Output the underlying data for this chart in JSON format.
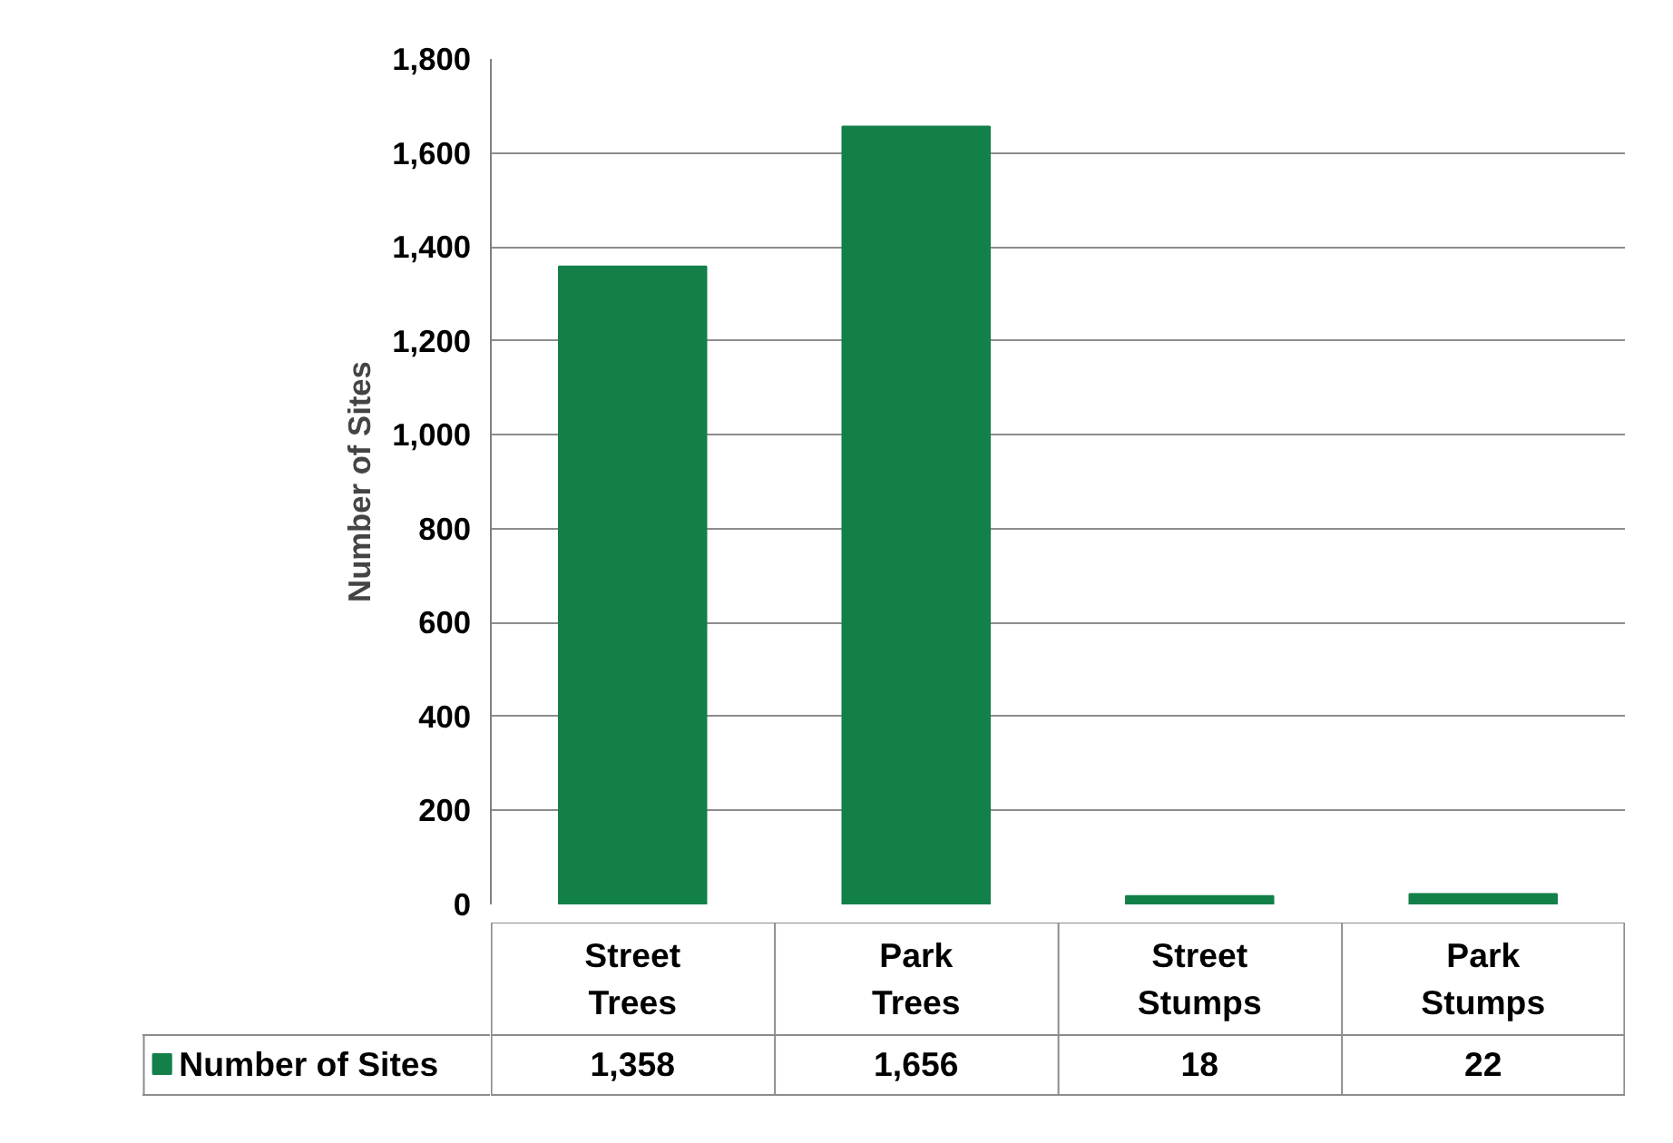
{
  "chart_data": {
    "type": "bar",
    "ylabel": "Number of Sites",
    "categories": [
      "Street Trees",
      "Park Trees",
      "Street Stumps",
      "Park Stumps"
    ],
    "series": [
      {
        "name": "Number of Sites",
        "color": "#138049",
        "values": [
          1358,
          1656,
          18,
          22
        ],
        "value_labels": [
          "1,358",
          "1,656",
          "18",
          "22"
        ]
      }
    ],
    "ylim": [
      0,
      1800
    ],
    "yticks": [
      0,
      200,
      400,
      600,
      800,
      {
        "value": 1000,
        "label": "1,000"
      },
      {
        "value": 1200,
        "label": "1,200"
      },
      {
        "value": 1400,
        "label": "1,400"
      },
      {
        "value": 1600,
        "label": "1,600"
      },
      {
        "value": 1800,
        "label": "1,800"
      }
    ],
    "grid": "y"
  }
}
